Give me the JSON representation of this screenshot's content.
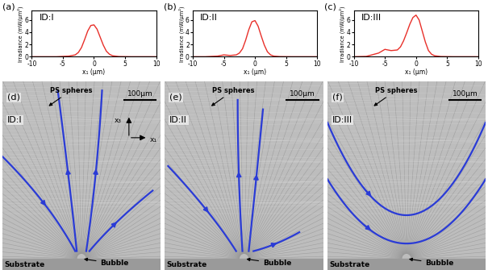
{
  "chart_data": [
    {
      "type": "line",
      "label": "(a)",
      "title": "ID:I",
      "x_label": "x₁ (μm)",
      "y_label": "Irradiance (mW/μm²)",
      "x": [
        -10,
        -8,
        -6,
        -5,
        -4,
        -3,
        -2.5,
        -2,
        -1.5,
        -1,
        -0.5,
        0,
        0.5,
        1,
        1.5,
        2,
        2.5,
        3,
        4,
        6,
        8,
        10
      ],
      "values": [
        0,
        0,
        0,
        0.05,
        0.1,
        0.3,
        0.7,
        1.5,
        2.8,
        4.2,
        5.1,
        5.2,
        4.5,
        3.2,
        1.9,
        0.9,
        0.4,
        0.15,
        0.03,
        0,
        0,
        0
      ],
      "color": "#e8302a",
      "xlim": [
        -10,
        10
      ],
      "xticks": [
        -10,
        -5,
        0,
        5,
        10
      ],
      "ylim": [
        0,
        7.5
      ],
      "yticks": [
        0,
        2,
        4,
        6
      ]
    },
    {
      "type": "line",
      "label": "(b)",
      "title": "ID:II",
      "x_label": "x₁ (μm)",
      "y_label": "Irradiance (mW/μm²)",
      "x": [
        -10,
        -8,
        -6,
        -5,
        -4,
        -3,
        -2.5,
        -2,
        -1.5,
        -1,
        -0.5,
        0,
        0.5,
        1,
        1.5,
        2,
        2.5,
        3,
        4,
        6,
        8,
        10
      ],
      "values": [
        0,
        0,
        0.1,
        0.3,
        0.2,
        0.3,
        0.6,
        1.3,
        2.7,
        4.4,
        5.7,
        5.9,
        5.0,
        3.4,
        1.9,
        0.8,
        0.3,
        0.1,
        0.02,
        0,
        0,
        0
      ],
      "color": "#e8302a",
      "xlim": [
        -10,
        10
      ],
      "xticks": [
        -10,
        -5,
        0,
        5,
        10
      ],
      "ylim": [
        0,
        7.5
      ],
      "yticks": [
        0,
        2,
        4,
        6
      ]
    },
    {
      "type": "line",
      "label": "(c)",
      "title": "ID:III",
      "x_label": "x₁ (μm)",
      "y_label": "Irradiance (mW/μm²)",
      "x": [
        -10,
        -8,
        -6,
        -5,
        -4,
        -3,
        -2.5,
        -2,
        -1.5,
        -1,
        -0.5,
        0,
        0.5,
        1,
        1.5,
        2,
        2.5,
        3,
        4,
        6,
        8,
        10
      ],
      "values": [
        0,
        0.05,
        0.6,
        1.2,
        1.0,
        1.1,
        1.6,
        2.6,
        3.9,
        5.3,
        6.4,
        6.8,
        6.0,
        4.2,
        2.4,
        1.0,
        0.4,
        0.15,
        0.03,
        0,
        0,
        0
      ],
      "color": "#e8302a",
      "xlim": [
        -10,
        10
      ],
      "xticks": [
        -10,
        -5,
        0,
        5,
        10
      ],
      "ylim": [
        0,
        7.5
      ],
      "yticks": [
        0,
        2,
        4,
        6
      ]
    }
  ],
  "images": [
    {
      "label": "(d)",
      "title": "ID:I",
      "particles": "PS spheres",
      "scale_bar": "100μm",
      "substrate": "Substrate",
      "bubble": "Bubble",
      "axes": [
        "x₃",
        "x₁"
      ],
      "color": "#2a3bd6"
    },
    {
      "label": "(e)",
      "title": "ID:II",
      "particles": "PS spheres",
      "scale_bar": "100μm",
      "substrate": "Substrate",
      "bubble": "Bubble",
      "color": "#2a3bd6"
    },
    {
      "label": "(f)",
      "title": "ID:III",
      "particles": "PS spheres",
      "scale_bar": "100μm",
      "substrate": "Substrate",
      "bubble": "Bubble",
      "color": "#2a3bd6"
    }
  ]
}
